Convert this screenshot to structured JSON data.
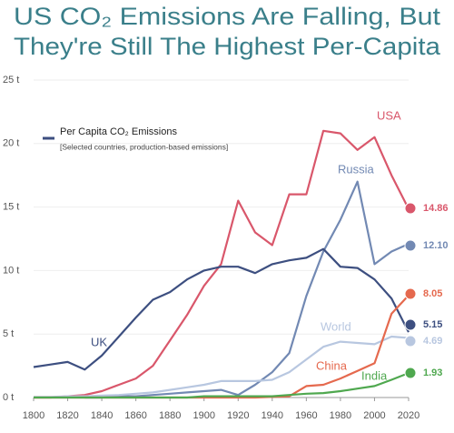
{
  "chart_data": {
    "type": "line",
    "title_lines": [
      "US CO₂ Emissions Are Falling, But",
      "They're Still The Highest Per-Capita"
    ],
    "legend_title": "Per Capita CO₂ Emissions",
    "note": "[Selected countries, production-based emissions]",
    "x": [
      1800,
      1810,
      1820,
      1830,
      1840,
      1850,
      1860,
      1870,
      1880,
      1890,
      1900,
      1910,
      1920,
      1930,
      1940,
      1950,
      1960,
      1970,
      1980,
      1990,
      2000,
      2010,
      2020
    ],
    "xlim": [
      1800,
      2020
    ],
    "xticks": [
      1800,
      1820,
      1840,
      1860,
      1880,
      1900,
      1920,
      1940,
      1960,
      1980,
      2000,
      2020
    ],
    "ylim": [
      0,
      25
    ],
    "yticks": [
      {
        "value": 0,
        "label": "0 t"
      },
      {
        "value": 5,
        "label": "5 t"
      },
      {
        "value": 10,
        "label": "10 t"
      },
      {
        "value": 15,
        "label": "15 t"
      },
      {
        "value": 20,
        "label": "20 t"
      },
      {
        "value": 25,
        "label": "25 t"
      }
    ],
    "series": [
      {
        "name": "USA",
        "color": "#d9576b",
        "value_label": "14.86",
        "values": [
          0,
          0,
          0.1,
          0.2,
          0.5,
          1,
          1.5,
          2.5,
          4.5,
          6.5,
          8.8,
          10.5,
          15.5,
          13,
          12,
          16,
          16,
          21,
          20.8,
          19.5,
          20.5,
          17.5,
          14.86
        ]
      },
      {
        "name": "Russia",
        "color": "#7289b3",
        "value_label": "12.10",
        "values": [
          null,
          null,
          null,
          0,
          0,
          0.1,
          0.1,
          0.2,
          0.3,
          0.4,
          0.5,
          0.6,
          0.2,
          1,
          2,
          3.5,
          8,
          11.5,
          14,
          17,
          10.5,
          11.5,
          12.1
        ]
      },
      {
        "name": "UK",
        "color": "#3d4f80",
        "value_label": "5.15",
        "values": [
          2.4,
          2.6,
          2.8,
          2.2,
          3.3,
          4.8,
          6.3,
          7.7,
          8.3,
          9.3,
          10,
          10.3,
          10.3,
          9.8,
          10.5,
          10.8,
          11,
          11.7,
          10.3,
          10.2,
          9.3,
          7.8,
          5.15
        ]
      },
      {
        "name": "World",
        "color": "#b8c7e0",
        "value_label": "4.69",
        "values": [
          0.05,
          0.05,
          0.1,
          0.1,
          0.15,
          0.2,
          0.3,
          0.4,
          0.6,
          0.8,
          1,
          1.3,
          1.3,
          1.3,
          1.4,
          2,
          3,
          4,
          4.4,
          4.3,
          4.2,
          4.8,
          4.69
        ]
      },
      {
        "name": "China",
        "color": "#e5694e",
        "value_label": "8.05",
        "values": [
          0,
          0,
          0,
          0,
          0,
          0,
          0,
          0,
          0,
          0,
          0,
          0,
          0,
          0,
          0.05,
          0.1,
          0.9,
          1,
          1.5,
          2.1,
          2.7,
          6.6,
          8.05
        ]
      },
      {
        "name": "India",
        "color": "#4fa84f",
        "value_label": "1.93",
        "values": [
          0,
          0,
          0,
          0,
          0,
          0,
          0,
          0,
          0,
          0,
          0.1,
          0.1,
          0.1,
          0.1,
          0.1,
          0.2,
          0.3,
          0.35,
          0.5,
          0.7,
          0.9,
          1.4,
          1.93
        ]
      }
    ]
  }
}
